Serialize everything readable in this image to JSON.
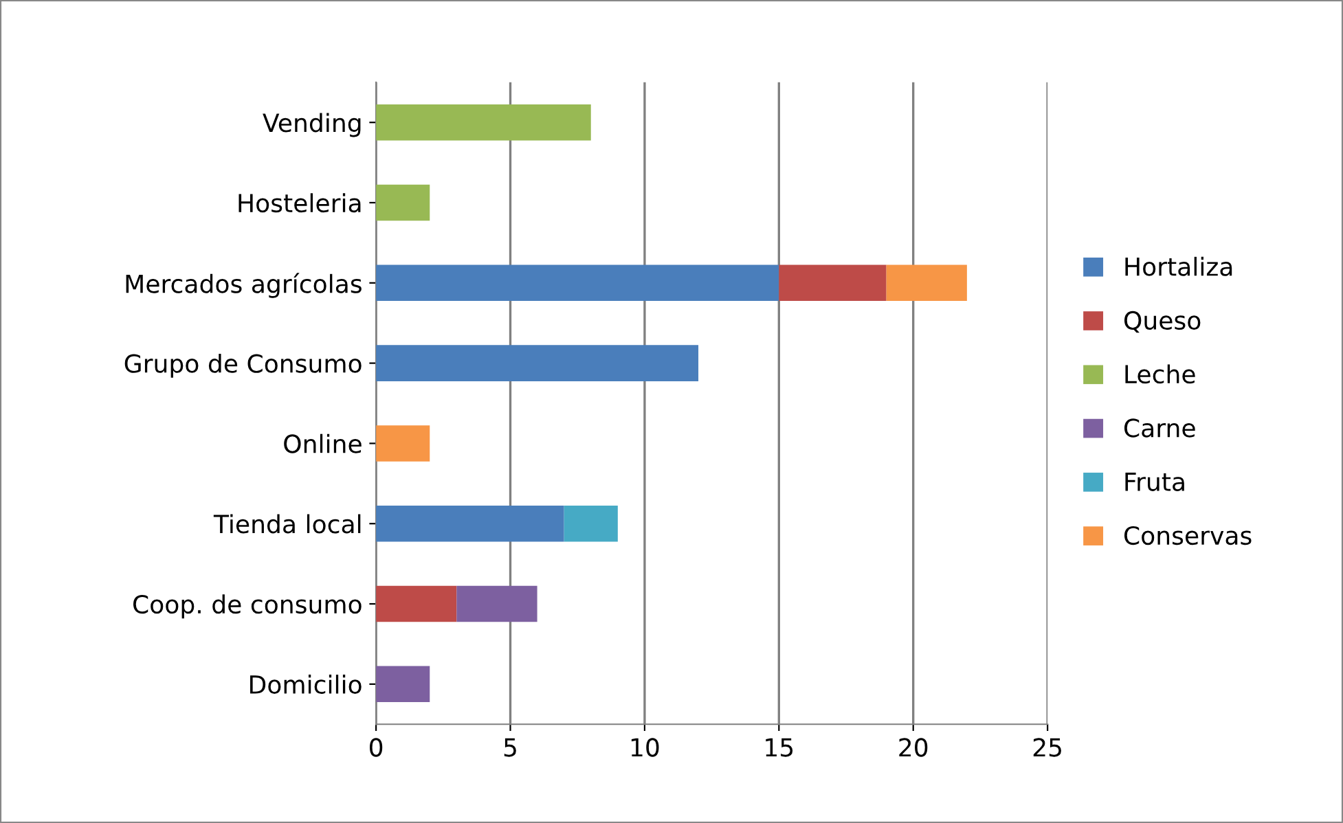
{
  "chart_data": {
    "type": "bar",
    "orientation": "horizontal",
    "stacked": true,
    "categories": [
      "Vending",
      "Hosteleria",
      "Mercados agrícolas",
      "Grupo de Consumo",
      "Online",
      "Tienda local",
      "Coop. de consumo",
      "Domicilio"
    ],
    "series": [
      {
        "name": "Hortaliza",
        "color": "#4a7ebb",
        "values": [
          null,
          null,
          15,
          12,
          null,
          7,
          null,
          null
        ]
      },
      {
        "name": "Queso",
        "color": "#be4b48",
        "values": [
          null,
          null,
          4,
          null,
          null,
          null,
          3,
          null
        ]
      },
      {
        "name": "Leche",
        "color": "#98b954",
        "values": [
          8,
          2,
          null,
          null,
          null,
          null,
          null,
          null
        ]
      },
      {
        "name": "Carne",
        "color": "#7d60a0",
        "values": [
          null,
          null,
          null,
          null,
          null,
          null,
          3,
          2
        ]
      },
      {
        "name": "Fruta",
        "color": "#46aac5",
        "values": [
          null,
          null,
          null,
          null,
          null,
          2,
          null,
          null
        ]
      },
      {
        "name": "Conservas",
        "color": "#f79646",
        "values": [
          null,
          null,
          3,
          null,
          2,
          null,
          null,
          null
        ]
      }
    ],
    "xlim": [
      0,
      25
    ],
    "xticks": [
      0,
      5,
      10,
      15,
      20,
      25
    ],
    "grid": "x",
    "legend": "right"
  }
}
